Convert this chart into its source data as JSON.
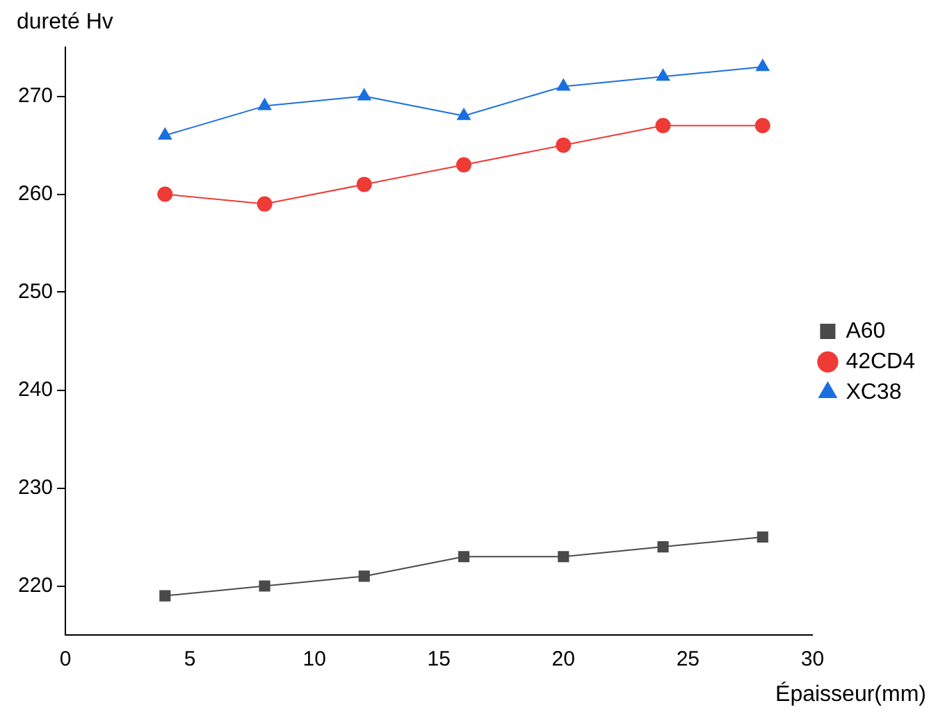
{
  "chart_data": {
    "type": "line",
    "xlabel": "Épaisseur(mm)",
    "ylabel": "dureté Hv",
    "x": [
      4,
      8,
      12,
      16,
      20,
      24,
      28
    ],
    "series": [
      {
        "name": "A60",
        "color": "#4a4a4a",
        "marker": "square",
        "values": [
          219,
          220,
          221,
          223,
          223,
          224,
          225
        ]
      },
      {
        "name": "42CD4",
        "color": "#ee3b36",
        "marker": "circle",
        "values": [
          260,
          259,
          261,
          263,
          265,
          267,
          267
        ]
      },
      {
        "name": "XC38",
        "color": "#1a6fe0",
        "marker": "triangle",
        "values": [
          266,
          269,
          270,
          268,
          271,
          272,
          273
        ]
      }
    ],
    "xlim": [
      0,
      30
    ],
    "xticks": [
      0,
      5,
      10,
      15,
      20,
      25,
      30
    ],
    "ylim": [
      215,
      275
    ],
    "yticks": [
      220,
      230,
      240,
      250,
      260,
      270
    ],
    "grid": false,
    "legend": "right"
  }
}
